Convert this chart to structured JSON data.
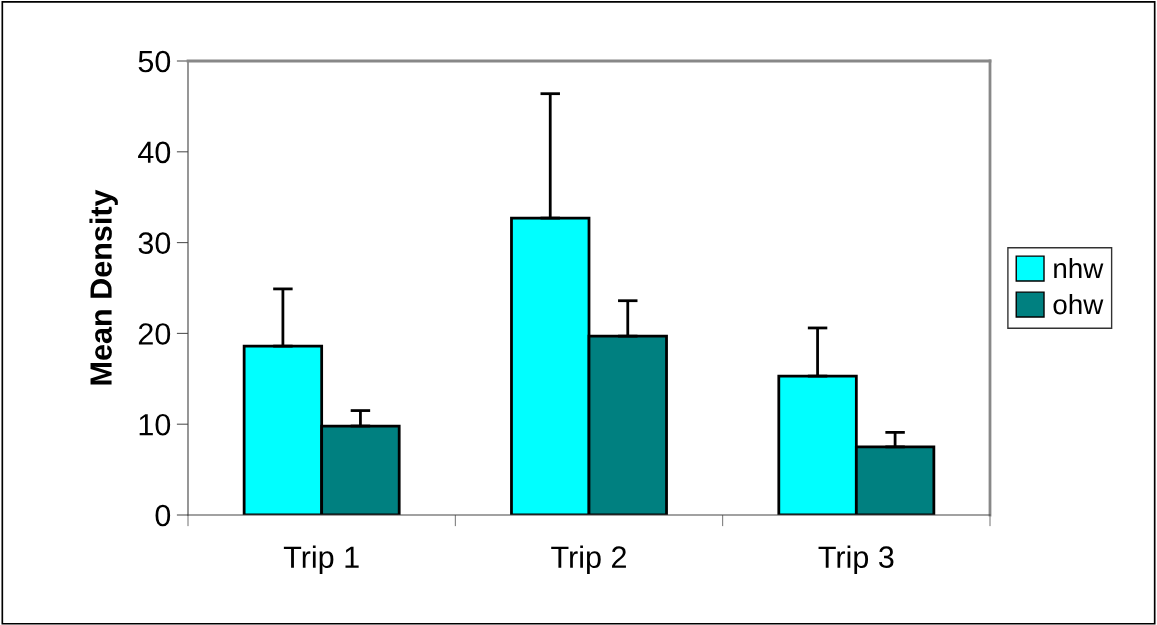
{
  "chart_data": {
    "type": "bar",
    "ylabel": "Mean Density",
    "categories": [
      "Trip 1",
      "Trip 2",
      "Trip 3"
    ],
    "series": [
      {
        "name": "nhw",
        "color": "#00ffff",
        "values": [
          18.6,
          32.7,
          15.3
        ],
        "errors": [
          [
            18.6,
            24.9
          ],
          [
            32.7,
            46.4
          ],
          [
            15.3,
            20.6
          ]
        ]
      },
      {
        "name": "ohw",
        "color": "#008080",
        "values": [
          9.8,
          19.7,
          7.5
        ],
        "errors": [
          [
            9.8,
            11.5
          ],
          [
            19.7,
            23.6
          ],
          [
            7.5,
            9.1
          ]
        ]
      }
    ],
    "ylim": [
      0,
      50
    ],
    "yticks": [
      0,
      10,
      20,
      30,
      40,
      50
    ],
    "grid": false,
    "legend": "right"
  }
}
